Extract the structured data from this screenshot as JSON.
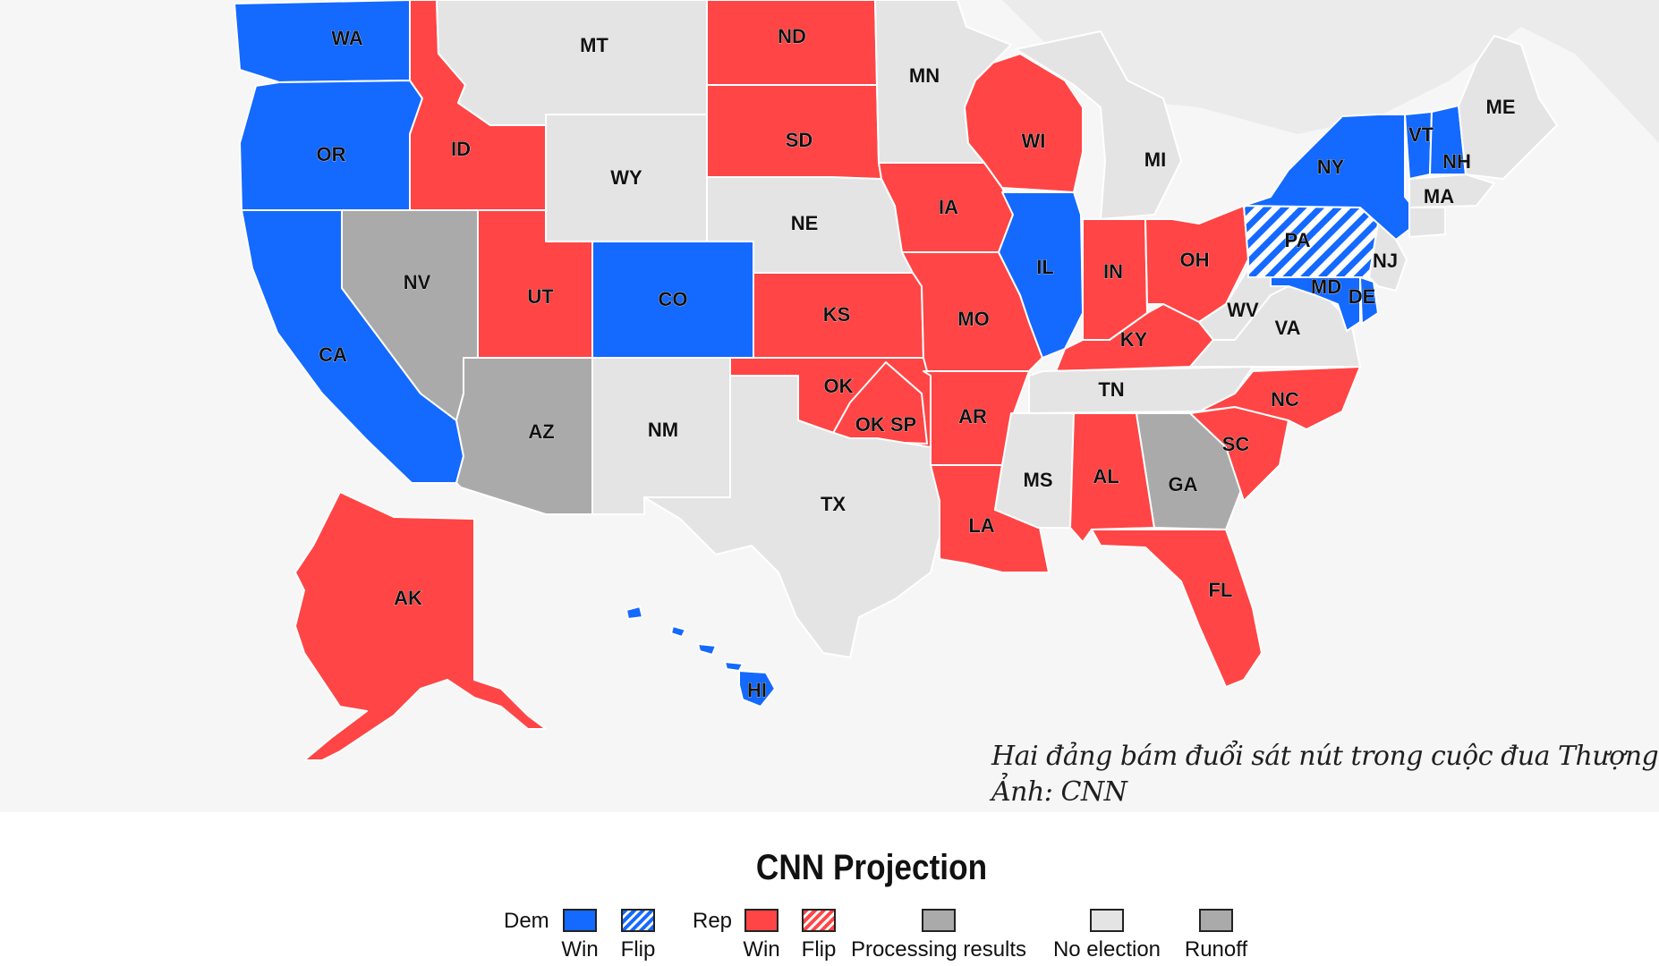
{
  "map": {
    "colors": {
      "dem": "#1469ff",
      "rep": "#ff4545",
      "processing": "#aaaaaa",
      "no_election": "#e4e4e4",
      "runoff": "#aaaaaa",
      "background": "#f6f6f6"
    },
    "states": [
      {
        "code": "WA",
        "status": "dem"
      },
      {
        "code": "OR",
        "status": "dem"
      },
      {
        "code": "CA",
        "status": "dem"
      },
      {
        "code": "NV",
        "status": "processing"
      },
      {
        "code": "ID",
        "status": "rep"
      },
      {
        "code": "MT",
        "status": "no_election"
      },
      {
        "code": "WY",
        "status": "no_election"
      },
      {
        "code": "UT",
        "status": "rep"
      },
      {
        "code": "AZ",
        "status": "processing"
      },
      {
        "code": "CO",
        "status": "dem"
      },
      {
        "code": "NM",
        "status": "no_election"
      },
      {
        "code": "ND",
        "status": "rep"
      },
      {
        "code": "SD",
        "status": "rep"
      },
      {
        "code": "NE",
        "status": "no_election"
      },
      {
        "code": "KS",
        "status": "rep"
      },
      {
        "code": "OK",
        "status": "rep"
      },
      {
        "code": "OK SP",
        "status": "rep"
      },
      {
        "code": "TX",
        "status": "no_election"
      },
      {
        "code": "MN",
        "status": "no_election"
      },
      {
        "code": "IA",
        "status": "rep"
      },
      {
        "code": "MO",
        "status": "rep"
      },
      {
        "code": "AR",
        "status": "rep"
      },
      {
        "code": "LA",
        "status": "rep"
      },
      {
        "code": "WI",
        "status": "rep"
      },
      {
        "code": "IL",
        "status": "dem"
      },
      {
        "code": "MI",
        "status": "no_election"
      },
      {
        "code": "IN",
        "status": "rep"
      },
      {
        "code": "OH",
        "status": "rep"
      },
      {
        "code": "KY",
        "status": "rep"
      },
      {
        "code": "TN",
        "status": "no_election"
      },
      {
        "code": "MS",
        "status": "no_election"
      },
      {
        "code": "AL",
        "status": "rep"
      },
      {
        "code": "GA",
        "status": "runoff"
      },
      {
        "code": "FL",
        "status": "rep"
      },
      {
        "code": "SC",
        "status": "rep"
      },
      {
        "code": "NC",
        "status": "rep"
      },
      {
        "code": "VA",
        "status": "no_election"
      },
      {
        "code": "WV",
        "status": "no_election"
      },
      {
        "code": "PA",
        "status": "dem_flip"
      },
      {
        "code": "NY",
        "status": "dem"
      },
      {
        "code": "VT",
        "status": "dem"
      },
      {
        "code": "NH",
        "status": "dem"
      },
      {
        "code": "ME",
        "status": "no_election"
      },
      {
        "code": "MA",
        "status": "no_election"
      },
      {
        "code": "NJ",
        "status": "no_election"
      },
      {
        "code": "MD",
        "status": "dem"
      },
      {
        "code": "DE",
        "status": "dem"
      },
      {
        "code": "AK",
        "status": "rep"
      },
      {
        "code": "HI",
        "status": "dem"
      }
    ]
  },
  "caption": {
    "line1": "Hai đảng bám đuổi sát nút trong cuộc đua Thượng viện.",
    "line2": "Ảnh: CNN"
  },
  "legend": {
    "title": "CNN Projection",
    "dem_label": "Dem",
    "rep_label": "Rep",
    "items": [
      {
        "label": "Win",
        "status": "dem"
      },
      {
        "label": "Flip",
        "status": "dem_flip"
      },
      {
        "label": "Win",
        "status": "rep"
      },
      {
        "label": "Flip",
        "status": "rep_flip"
      },
      {
        "label": "Processing results",
        "status": "processing"
      },
      {
        "label": "No election",
        "status": "no_election"
      },
      {
        "label": "Runoff",
        "status": "runoff"
      }
    ]
  }
}
